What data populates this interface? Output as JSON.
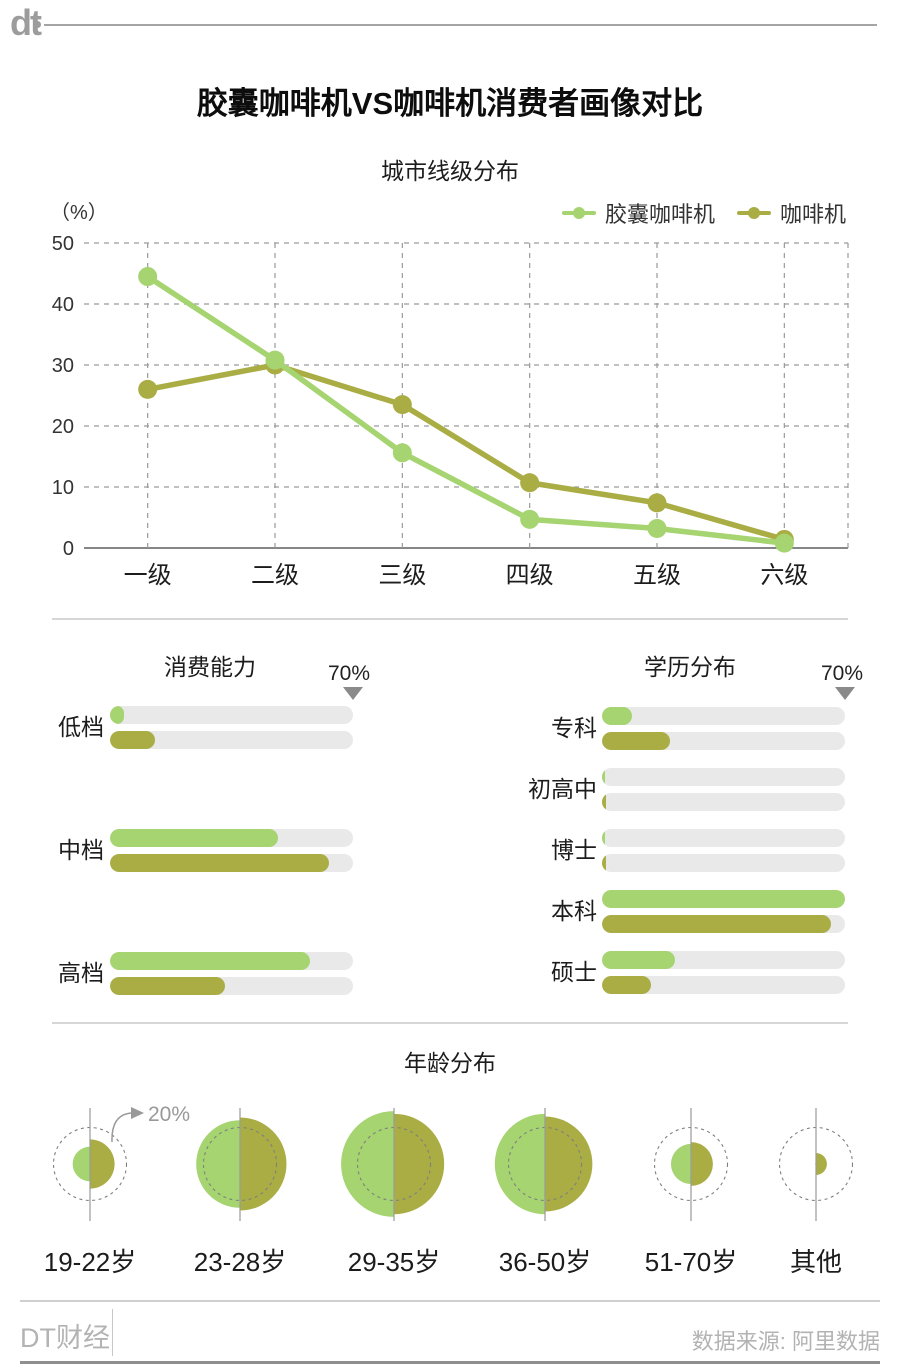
{
  "page": {
    "logo": "dt",
    "title": "胶囊咖啡机VS咖啡机消费者画像对比"
  },
  "colors": {
    "capsule": "#a5d470",
    "coffee": "#a9ad44",
    "track": "#e9e9e9",
    "grid": "#9a9a9a",
    "axis": "#5f5f5f",
    "annotation": "#999999"
  },
  "legend": {
    "items": [
      {
        "label": "胶囊咖啡机",
        "series": "capsule"
      },
      {
        "label": "咖啡机",
        "series": "coffee"
      }
    ]
  },
  "chart_data": [
    {
      "id": "city-tier",
      "type": "line",
      "title": "城市线级分布",
      "unit_label": "（%）",
      "categories": [
        "一级",
        "二级",
        "三级",
        "四级",
        "五级",
        "六级"
      ],
      "series": [
        {
          "name": "胶囊咖啡机",
          "color_key": "capsule",
          "values": [
            44.5,
            30.8,
            15.6,
            4.7,
            3.2,
            0.8
          ]
        },
        {
          "name": "咖啡机",
          "color_key": "coffee",
          "values": [
            26.0,
            30.0,
            23.5,
            10.7,
            7.4,
            1.4
          ]
        }
      ],
      "ylim": [
        0,
        50
      ],
      "yticks": [
        0,
        10,
        20,
        30,
        40,
        50
      ],
      "grid": true,
      "legend_position": "top-right"
    },
    {
      "id": "spending-power",
      "type": "bar",
      "title": "消费能力",
      "axis_max_label": "70%",
      "max_value": 70,
      "categories": [
        "低档",
        "中档",
        "高档"
      ],
      "series": [
        {
          "name": "胶囊咖啡机",
          "color_key": "capsule",
          "values": [
            4,
            48.5,
            57.5
          ]
        },
        {
          "name": "咖啡机",
          "color_key": "coffee",
          "values": [
            13,
            63,
            33
          ]
        }
      ]
    },
    {
      "id": "education",
      "type": "bar",
      "title": "学历分布",
      "axis_max_label": "70%",
      "max_value": 70,
      "categories": [
        "专科",
        "初高中",
        "博士",
        "本科",
        "硕士"
      ],
      "series": [
        {
          "name": "胶囊咖啡机",
          "color_key": "capsule",
          "values": [
            8.5,
            1,
            1,
            70,
            21
          ]
        },
        {
          "name": "咖啡机",
          "color_key": "coffee",
          "values": [
            19.5,
            1.2,
            1.2,
            66,
            14
          ]
        }
      ]
    },
    {
      "id": "age",
      "type": "bubble",
      "title": "年龄分布",
      "reference": {
        "label": "20%",
        "value": 20
      },
      "categories": [
        "19-22岁",
        "23-28岁",
        "29-35岁",
        "36-50岁",
        "51-70岁",
        "其他"
      ],
      "series": [
        {
          "name": "胶囊咖啡机",
          "color_key": "capsule",
          "values": [
            9.5,
            24,
            29,
            27.5,
            11,
            0.5
          ]
        },
        {
          "name": "咖啡机",
          "color_key": "coffee",
          "values": [
            13.5,
            25.5,
            27.5,
            26,
            12,
            6
          ]
        }
      ]
    }
  ],
  "footer": {
    "brand": "DT财经",
    "source": "数据来源: 阿里数据"
  }
}
